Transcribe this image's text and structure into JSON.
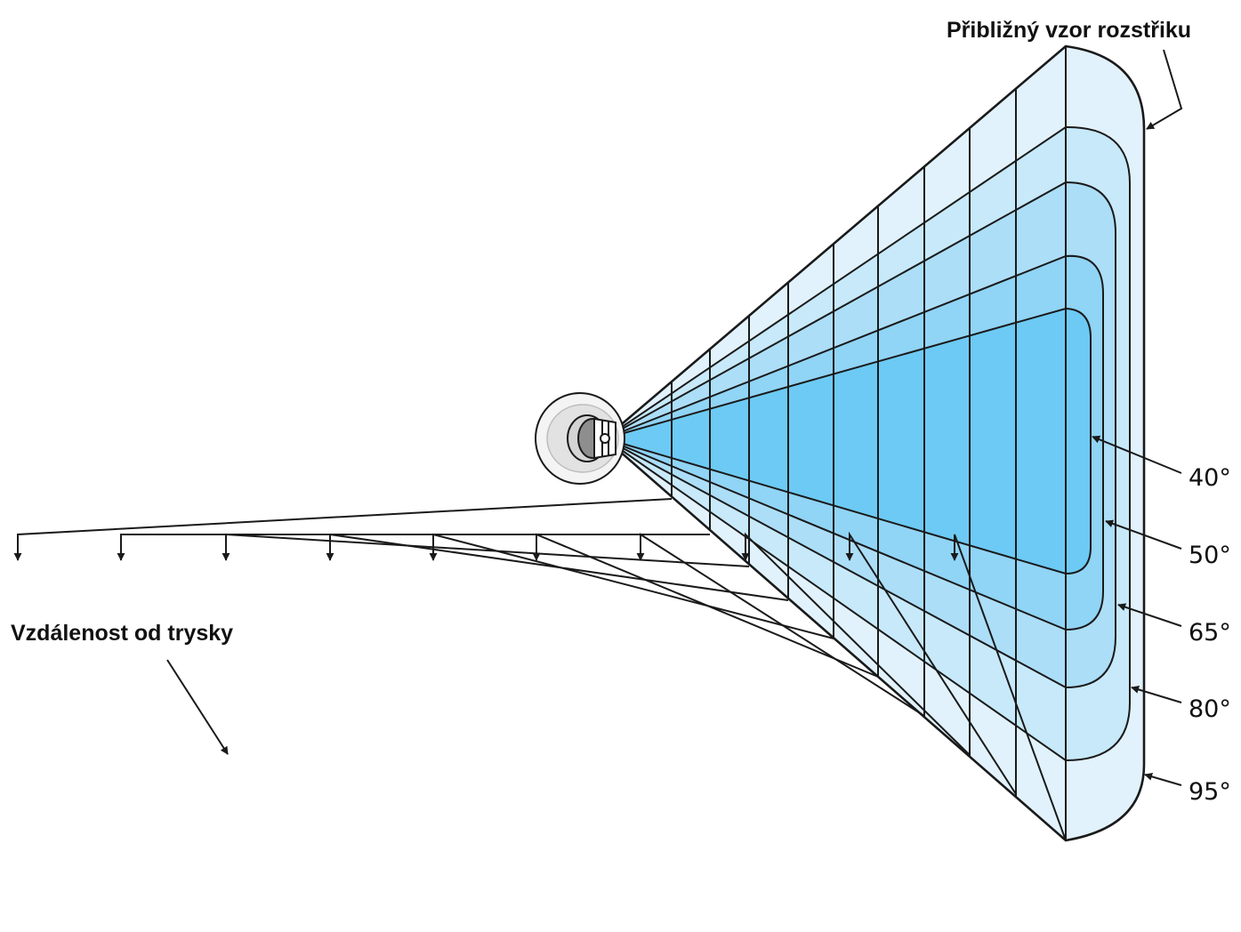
{
  "labels": {
    "spray_pattern": "Přibližný vzor rozstřiku",
    "distance": "Vzdálenost od trysky"
  },
  "angles": [
    "40°",
    "50°",
    "65°",
    "80°",
    "95°"
  ],
  "colors": {
    "band_95": "#e1f2fc",
    "band_80": "#c7e9fa",
    "band_65": "#acdef8",
    "band_50": "#90d4f6",
    "band_40": "#6dcaf4",
    "line": "#1a1a1a"
  },
  "distance_arrow_count": 10
}
